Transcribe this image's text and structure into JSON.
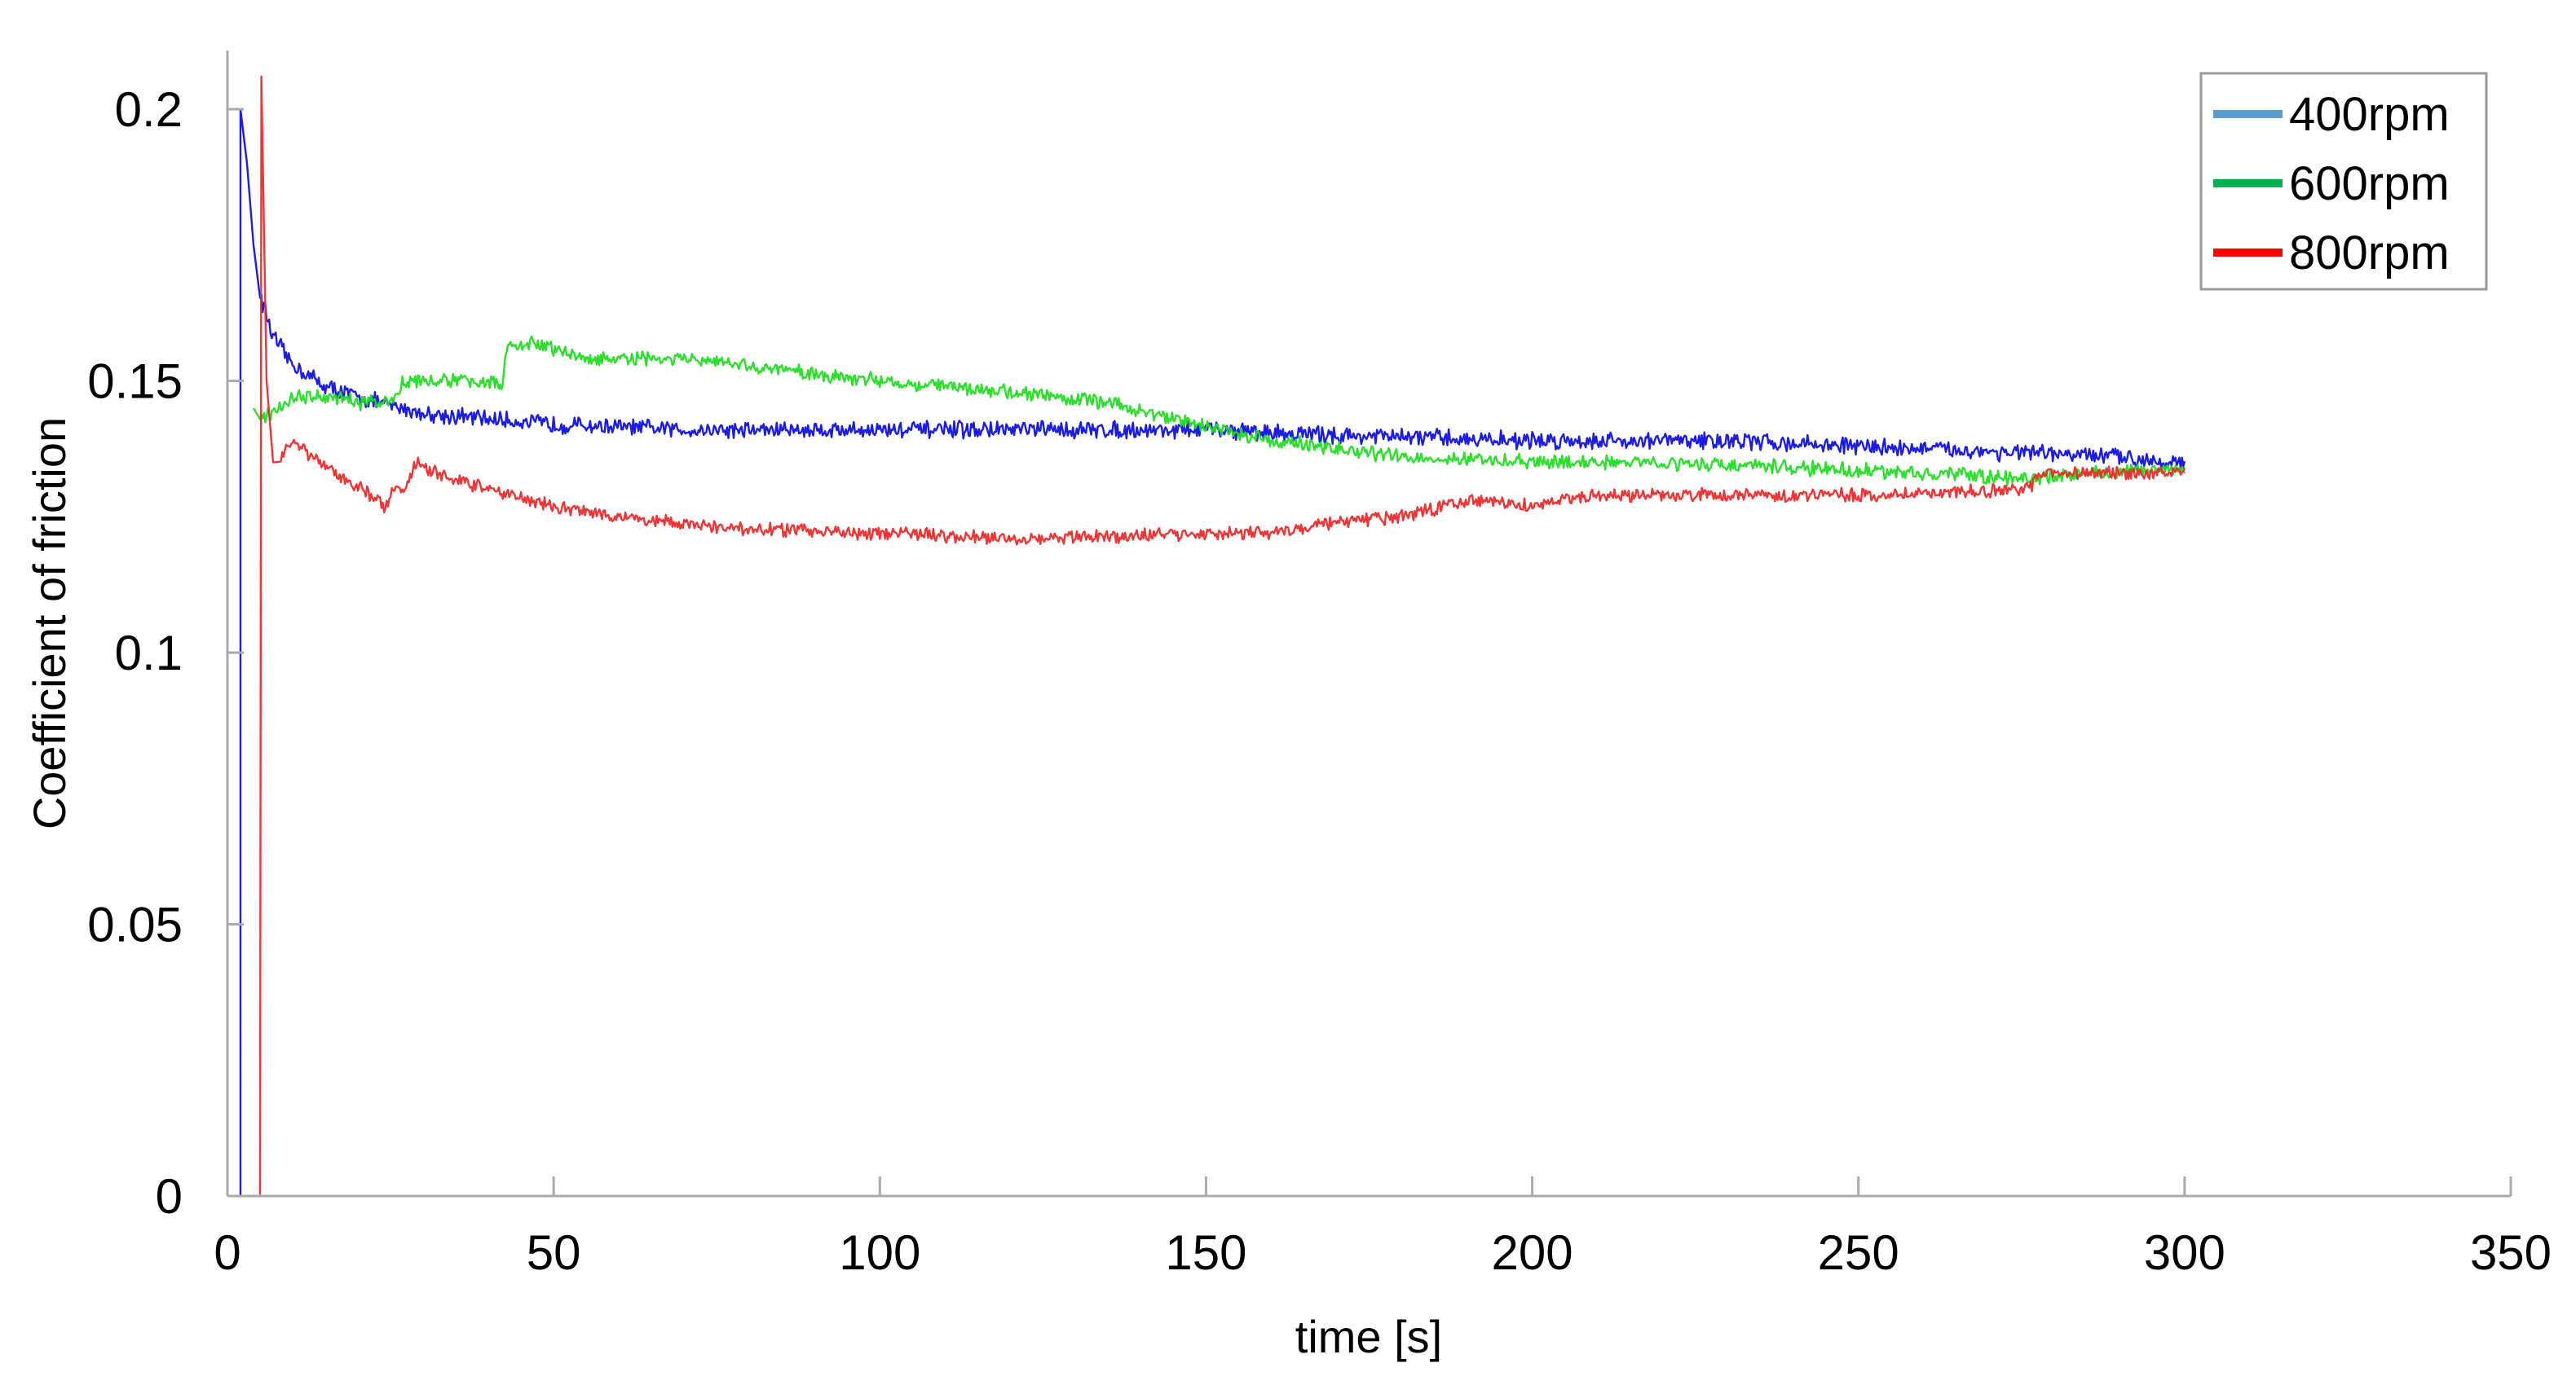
{
  "chart_data": {
    "type": "line",
    "title": "",
    "xlabel": "time [s]",
    "ylabel": "Coefficient of friction",
    "xlim": [
      0,
      350
    ],
    "ylim": [
      0,
      0.2
    ],
    "x_ticks": [
      0,
      50,
      100,
      150,
      200,
      250,
      300,
      350
    ],
    "x_tick_labels": [
      "0",
      "50",
      "100",
      "150",
      "200",
      "250",
      "300",
      "350"
    ],
    "y_ticks": [
      0,
      0.05,
      0.1,
      0.15,
      0.2
    ],
    "y_tick_labels": [
      "0",
      "0.05",
      "0.1",
      "0.15",
      "0.2"
    ],
    "grid": false,
    "legend_position": "top-right",
    "series": [
      {
        "name": "400rpm",
        "color": "#1010e6",
        "legend_color": "#5b9bd5",
        "noise": 0.0013,
        "points": [
          [
            2,
            0
          ],
          [
            2,
            0.2
          ],
          [
            3,
            0.19
          ],
          [
            4,
            0.175
          ],
          [
            5,
            0.166
          ],
          [
            7,
            0.158
          ],
          [
            10,
            0.153
          ],
          [
            15,
            0.149
          ],
          [
            20,
            0.147
          ],
          [
            30,
            0.144
          ],
          [
            50,
            0.142
          ],
          [
            70,
            0.141
          ],
          [
            100,
            0.141
          ],
          [
            130,
            0.141
          ],
          [
            150,
            0.141
          ],
          [
            170,
            0.14
          ],
          [
            200,
            0.139
          ],
          [
            230,
            0.139
          ],
          [
            250,
            0.138
          ],
          [
            270,
            0.137
          ],
          [
            290,
            0.136
          ],
          [
            300,
            0.135
          ]
        ]
      },
      {
        "name": "600rpm",
        "color": "#22dd22",
        "legend_color": "#00b050",
        "noise": 0.0011,
        "points": [
          [
            4,
            0.145
          ],
          [
            5,
            0.143
          ],
          [
            7,
            0.144
          ],
          [
            10,
            0.147
          ],
          [
            15,
            0.147
          ],
          [
            20,
            0.146
          ],
          [
            25,
            0.146
          ],
          [
            27,
            0.15
          ],
          [
            35,
            0.15
          ],
          [
            40,
            0.15
          ],
          [
            42,
            0.149
          ],
          [
            43,
            0.156
          ],
          [
            47,
            0.157
          ],
          [
            55,
            0.154
          ],
          [
            70,
            0.154
          ],
          [
            85,
            0.152
          ],
          [
            100,
            0.15
          ],
          [
            120,
            0.148
          ],
          [
            135,
            0.146
          ],
          [
            145,
            0.143
          ],
          [
            160,
            0.139
          ],
          [
            180,
            0.136
          ],
          [
            200,
            0.135
          ],
          [
            220,
            0.135
          ],
          [
            240,
            0.134
          ],
          [
            260,
            0.133
          ],
          [
            275,
            0.132
          ],
          [
            285,
            0.133
          ],
          [
            300,
            0.134
          ]
        ]
      },
      {
        "name": "800rpm",
        "color": "#ee2a2a",
        "legend_color": "#ff0000",
        "noise": 0.001,
        "points": [
          [
            5,
            0
          ],
          [
            5.2,
            0.206
          ],
          [
            6,
            0.15
          ],
          [
            7,
            0.135
          ],
          [
            8,
            0.136
          ],
          [
            10,
            0.139
          ],
          [
            12,
            0.137
          ],
          [
            15,
            0.134
          ],
          [
            18,
            0.132
          ],
          [
            22,
            0.129
          ],
          [
            24,
            0.127
          ],
          [
            26,
            0.131
          ],
          [
            27,
            0.13
          ],
          [
            29,
            0.135
          ],
          [
            32,
            0.133
          ],
          [
            40,
            0.13
          ],
          [
            50,
            0.127
          ],
          [
            60,
            0.125
          ],
          [
            75,
            0.123
          ],
          [
            100,
            0.122
          ],
          [
            125,
            0.121
          ],
          [
            150,
            0.122
          ],
          [
            160,
            0.122
          ],
          [
            170,
            0.124
          ],
          [
            180,
            0.125
          ],
          [
            190,
            0.128
          ],
          [
            200,
            0.127
          ],
          [
            210,
            0.129
          ],
          [
            230,
            0.129
          ],
          [
            250,
            0.129
          ],
          [
            276,
            0.13
          ],
          [
            278,
            0.133
          ],
          [
            290,
            0.133
          ],
          [
            300,
            0.133
          ]
        ]
      }
    ]
  }
}
